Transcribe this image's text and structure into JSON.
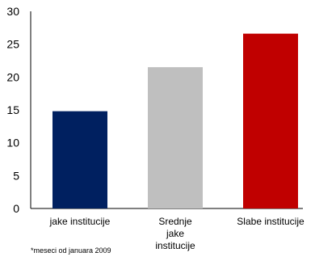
{
  "chart_data": {
    "type": "bar",
    "categories": [
      "jake institucije",
      "Srednje\njake\ninstitucije",
      "Slabe institucije"
    ],
    "values": [
      14.8,
      21.5,
      26.6
    ],
    "colors": [
      "#002060",
      "#bfbfbf",
      "#c00000"
    ],
    "ylim": [
      0,
      30
    ],
    "yticks": [
      "0",
      "5",
      "10",
      "15",
      "20",
      "25",
      "30"
    ],
    "grid": false,
    "legend": "none",
    "title": "",
    "xlabel": "",
    "ylabel": ""
  },
  "footnote": "*meseci od januara 2009"
}
